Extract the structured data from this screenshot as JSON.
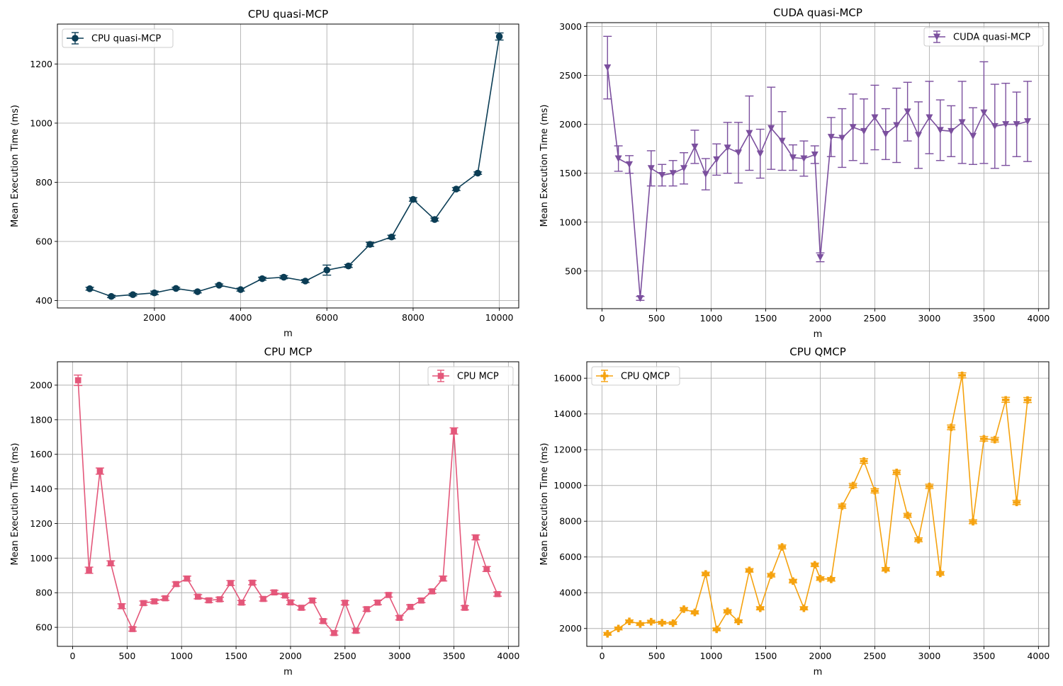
{
  "chart_data": [
    {
      "type": "line",
      "title": "CPU quasi-MCP",
      "xlabel": "m",
      "ylabel": "Mean Execution Time (ms)",
      "xlim": [
        -250,
        10450
      ],
      "ylim": [
        375,
        1335
      ],
      "xticks": [
        2000,
        4000,
        6000,
        8000,
        10000
      ],
      "yticks": [
        400,
        600,
        800,
        1000,
        1200
      ],
      "grid": true,
      "legend_loc": "top-left",
      "color": "#0b3d55",
      "marker": "circle",
      "series": [
        {
          "name": "CPU quasi-MCP",
          "x": [
            500,
            1000,
            1500,
            2000,
            2500,
            3000,
            3500,
            4000,
            4500,
            5000,
            5500,
            6000,
            6500,
            7000,
            7500,
            8000,
            8500,
            9000,
            9500,
            10000
          ],
          "y": [
            440,
            414,
            420,
            426,
            441,
            430,
            452,
            437,
            474,
            479,
            466,
            503,
            517,
            590,
            615,
            742,
            674,
            777,
            831,
            1293
          ],
          "err": [
            5,
            4,
            4,
            6,
            4,
            4,
            4,
            5,
            5,
            5,
            5,
            17,
            5,
            7,
            6,
            6,
            5,
            5,
            4,
            12
          ]
        }
      ]
    },
    {
      "type": "line",
      "title": "CUDA quasi-MCP",
      "xlabel": "m",
      "ylabel": "Mean Execution Time (ms)",
      "xlim": [
        -140,
        4095
      ],
      "ylim": [
        115,
        3040
      ],
      "xticks": [
        0,
        500,
        1000,
        1500,
        2000,
        2500,
        3000,
        3500,
        4000
      ],
      "yticks": [
        500,
        1000,
        1500,
        2000,
        2500,
        3000
      ],
      "grid": true,
      "legend_loc": "top-right",
      "color": "#7b4f9e",
      "marker": "triangle-down",
      "series": [
        {
          "name": "CUDA quasi-MCP",
          "x": [
            50,
            150,
            250,
            350,
            450,
            550,
            650,
            750,
            850,
            950,
            1050,
            1150,
            1250,
            1350,
            1450,
            1550,
            1650,
            1750,
            1850,
            1950,
            2000,
            2100,
            2200,
            2300,
            2400,
            2500,
            2600,
            2700,
            2800,
            2900,
            3000,
            3100,
            3200,
            3300,
            3400,
            3500,
            3600,
            3700,
            3800,
            3900
          ],
          "y": [
            2580,
            1650,
            1590,
            220,
            1550,
            1480,
            1500,
            1550,
            1770,
            1490,
            1640,
            1760,
            1710,
            1910,
            1700,
            1960,
            1830,
            1660,
            1650,
            1690,
            640,
            1870,
            1860,
            1970,
            1930,
            2070,
            1900,
            1990,
            2130,
            1890,
            2070,
            1940,
            1930,
            2020,
            1880,
            2120,
            1980,
            2000,
            2000,
            2030
          ],
          "err": [
            320,
            130,
            90,
            20,
            180,
            110,
            130,
            160,
            170,
            160,
            160,
            260,
            310,
            380,
            250,
            420,
            300,
            130,
            180,
            90,
            45,
            200,
            300,
            340,
            330,
            330,
            260,
            380,
            300,
            340,
            370,
            310,
            260,
            420,
            290,
            520,
            430,
            420,
            330,
            410
          ]
        }
      ]
    },
    {
      "type": "line",
      "title": "CPU MCP",
      "xlabel": "m",
      "ylabel": "Mean Execution Time (ms)",
      "xlim": [
        -140,
        4095
      ],
      "ylim": [
        490,
        2135
      ],
      "xticks": [
        0,
        500,
        1000,
        1500,
        2000,
        2500,
        3000,
        3500,
        4000
      ],
      "yticks": [
        600,
        800,
        1000,
        1200,
        1400,
        1600,
        1800,
        2000
      ],
      "grid": true,
      "legend_loc": "top-right",
      "color": "#e4577a",
      "marker": "square",
      "series": [
        {
          "name": "CPU MCP",
          "x": [
            50,
            150,
            250,
            350,
            450,
            550,
            650,
            750,
            850,
            950,
            1050,
            1150,
            1250,
            1350,
            1450,
            1550,
            1650,
            1750,
            1850,
            1950,
            2000,
            2100,
            2200,
            2300,
            2400,
            2500,
            2600,
            2700,
            2800,
            2900,
            3000,
            3100,
            3200,
            3300,
            3400,
            3500,
            3600,
            3700,
            3800,
            3900
          ],
          "y": [
            2028,
            930,
            1503,
            970,
            722,
            590,
            740,
            750,
            768,
            850,
            882,
            777,
            756,
            762,
            856,
            743,
            858,
            764,
            802,
            784,
            744,
            713,
            755,
            636,
            567,
            742,
            580,
            705,
            743,
            787,
            655,
            718,
            755,
            808,
            882,
            1735,
            713,
            1120,
            937,
            792
          ],
          "err": [
            30,
            18,
            18,
            14,
            14,
            12,
            12,
            12,
            12,
            12,
            14,
            12,
            12,
            12,
            14,
            12,
            12,
            12,
            12,
            12,
            12,
            12,
            12,
            12,
            12,
            12,
            12,
            12,
            12,
            12,
            12,
            12,
            12,
            12,
            14,
            18,
            12,
            14,
            14,
            12
          ]
        }
      ]
    },
    {
      "type": "line",
      "title": "CPU QMCP",
      "xlabel": "m",
      "ylabel": "Mean Execution Time (ms)",
      "xlim": [
        -140,
        4095
      ],
      "ylim": [
        1000,
        16920
      ],
      "xticks": [
        0,
        500,
        1000,
        1500,
        2000,
        2500,
        3000,
        3500,
        4000
      ],
      "yticks": [
        2000,
        4000,
        6000,
        8000,
        10000,
        12000,
        14000,
        16000
      ],
      "grid": true,
      "legend_loc": "top-left",
      "color": "#f5a20f",
      "marker": "plus-filled",
      "series": [
        {
          "name": "CPU QMCP",
          "x": [
            50,
            150,
            250,
            350,
            450,
            550,
            650,
            750,
            850,
            950,
            1050,
            1150,
            1250,
            1350,
            1450,
            1550,
            1650,
            1750,
            1850,
            1950,
            2000,
            2100,
            2200,
            2300,
            2400,
            2500,
            2600,
            2700,
            2800,
            2900,
            3000,
            3100,
            3200,
            3300,
            3400,
            3500,
            3600,
            3700,
            3800,
            3900
          ],
          "y": [
            1700,
            2000,
            2400,
            2250,
            2380,
            2320,
            2300,
            3080,
            2900,
            5050,
            1950,
            2960,
            2400,
            5250,
            3130,
            4980,
            6560,
            4650,
            3130,
            5560,
            4790,
            4750,
            8840,
            10000,
            11370,
            9700,
            5310,
            10730,
            8330,
            6960,
            9950,
            5080,
            13250,
            16160,
            7970,
            12610,
            12560,
            14790,
            9050,
            14780
          ],
          "err": [
            80,
            80,
            80,
            80,
            80,
            80,
            80,
            90,
            90,
            100,
            80,
            90,
            80,
            100,
            90,
            100,
            110,
            100,
            90,
            100,
            100,
            100,
            120,
            120,
            130,
            120,
            100,
            120,
            110,
            110,
            120,
            100,
            130,
            140,
            110,
            130,
            130,
            140,
            120,
            140
          ]
        }
      ]
    }
  ]
}
